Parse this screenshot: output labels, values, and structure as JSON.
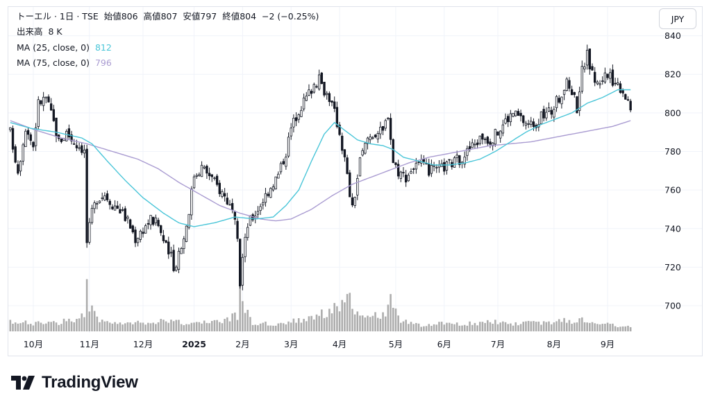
{
  "header": {
    "symbol": "トーエル · 1日 · TSE",
    "open_label": "始値",
    "open": "806",
    "high_label": "高値",
    "high": "807",
    "low_label": "安値",
    "low": "797",
    "close_label": "終値",
    "close": "804",
    "change": "−2 (−0.25%)",
    "volume_label": "出来高",
    "volume": "8 K",
    "ma25_label": "MA (25, close, 0)",
    "ma25_value": "812",
    "ma75_label": "MA (75, close, 0)",
    "ma75_value": "796"
  },
  "currency": "JPY",
  "brand": "TradingView",
  "colors": {
    "up": "#131722",
    "down": "#131722",
    "ma25": "#49c5d8",
    "ma75": "#a99bd1",
    "volume": "#9e9e9e"
  },
  "chart_data": {
    "type": "candlestick",
    "y_ticks": [
      "700",
      "720",
      "740",
      "760",
      "780",
      "800",
      "820",
      "840"
    ],
    "ylim": [
      686,
      842
    ],
    "x_ticks": [
      {
        "label": "10月",
        "index": 9,
        "bold": false
      },
      {
        "label": "11月",
        "index": 31,
        "bold": false
      },
      {
        "label": "12月",
        "index": 52,
        "bold": false
      },
      {
        "label": "2025",
        "index": 72,
        "bold": true
      },
      {
        "label": "2月",
        "index": 91,
        "bold": false
      },
      {
        "label": "3月",
        "index": 110,
        "bold": false
      },
      {
        "label": "4月",
        "index": 129,
        "bold": false
      },
      {
        "label": "5月",
        "index": 151,
        "bold": false
      },
      {
        "label": "6月",
        "index": 170,
        "bold": false
      },
      {
        "label": "7月",
        "index": 191,
        "bold": false
      },
      {
        "label": "8月",
        "index": 213,
        "bold": false
      },
      {
        "label": "9月",
        "index": 234,
        "bold": false
      }
    ],
    "ohlc_anchors": [
      [
        0,
        790
      ],
      [
        3,
        770
      ],
      [
        6,
        793
      ],
      [
        9,
        783
      ],
      [
        11,
        805
      ],
      [
        14,
        808
      ],
      [
        17,
        795
      ],
      [
        19,
        785
      ],
      [
        22,
        790
      ],
      [
        25,
        785
      ],
      [
        28,
        782
      ],
      [
        29,
        780
      ],
      [
        30,
        733
      ],
      [
        32,
        748
      ],
      [
        34,
        756
      ],
      [
        37,
        758
      ],
      [
        40,
        753
      ],
      [
        43,
        750
      ],
      [
        46,
        744
      ],
      [
        49,
        735
      ],
      [
        52,
        740
      ],
      [
        55,
        745
      ],
      [
        58,
        742
      ],
      [
        61,
        730
      ],
      [
        63,
        725
      ],
      [
        64,
        718
      ],
      [
        66,
        728
      ],
      [
        68,
        735
      ],
      [
        70,
        750
      ],
      [
        72,
        768
      ],
      [
        75,
        772
      ],
      [
        78,
        768
      ],
      [
        81,
        762
      ],
      [
        84,
        757
      ],
      [
        86,
        752
      ],
      [
        88,
        742
      ],
      [
        89,
        732
      ],
      [
        90,
        712
      ],
      [
        91,
        725
      ],
      [
        93,
        742
      ],
      [
        96,
        748
      ],
      [
        99,
        755
      ],
      [
        102,
        762
      ],
      [
        105,
        768
      ],
      [
        108,
        780
      ],
      [
        110,
        792
      ],
      [
        113,
        802
      ],
      [
        116,
        808
      ],
      [
        119,
        815
      ],
      [
        121,
        817
      ],
      [
        123,
        812
      ],
      [
        125,
        808
      ],
      [
        127,
        800
      ],
      [
        129,
        790
      ],
      [
        131,
        776
      ],
      [
        133,
        758
      ],
      [
        134,
        750
      ],
      [
        135,
        758
      ],
      [
        137,
        775
      ],
      [
        140,
        787
      ],
      [
        143,
        790
      ],
      [
        146,
        790
      ],
      [
        148,
        800
      ],
      [
        150,
        775
      ],
      [
        152,
        770
      ],
      [
        155,
        767
      ],
      [
        158,
        772
      ],
      [
        161,
        773
      ],
      [
        164,
        770
      ],
      [
        167,
        770
      ],
      [
        170,
        772
      ],
      [
        173,
        774
      ],
      [
        176,
        776
      ],
      [
        179,
        780
      ],
      [
        182,
        784
      ],
      [
        185,
        788
      ],
      [
        188,
        786
      ],
      [
        191,
        790
      ],
      [
        194,
        796
      ],
      [
        197,
        800
      ],
      [
        200,
        797
      ],
      [
        203,
        794
      ],
      [
        206,
        795
      ],
      [
        209,
        799
      ],
      [
        212,
        801
      ],
      [
        215,
        808
      ],
      [
        218,
        815
      ],
      [
        220,
        812
      ],
      [
        222,
        803
      ],
      [
        224,
        822
      ],
      [
        226,
        830
      ],
      [
        228,
        820
      ],
      [
        230,
        815
      ],
      [
        233,
        820
      ],
      [
        235,
        818
      ],
      [
        238,
        815
      ],
      [
        240,
        812
      ],
      [
        242,
        806
      ],
      [
        243,
        804
      ]
    ],
    "ma25_anchors": [
      [
        0,
        795
      ],
      [
        8,
        792
      ],
      [
        18,
        790
      ],
      [
        28,
        787
      ],
      [
        32,
        784
      ],
      [
        38,
        775
      ],
      [
        45,
        765
      ],
      [
        52,
        756
      ],
      [
        60,
        748
      ],
      [
        66,
        743
      ],
      [
        72,
        741
      ],
      [
        80,
        743
      ],
      [
        88,
        746
      ],
      [
        96,
        745
      ],
      [
        103,
        746
      ],
      [
        108,
        752
      ],
      [
        113,
        760
      ],
      [
        118,
        775
      ],
      [
        123,
        789
      ],
      [
        127,
        795
      ],
      [
        131,
        791
      ],
      [
        136,
        786
      ],
      [
        141,
        784
      ],
      [
        146,
        783
      ],
      [
        150,
        781
      ],
      [
        154,
        777
      ],
      [
        160,
        775
      ],
      [
        166,
        773
      ],
      [
        172,
        773
      ],
      [
        178,
        774
      ],
      [
        184,
        776
      ],
      [
        190,
        780
      ],
      [
        196,
        785
      ],
      [
        202,
        790
      ],
      [
        208,
        794
      ],
      [
        214,
        797
      ],
      [
        220,
        800
      ],
      [
        226,
        805
      ],
      [
        232,
        808
      ],
      [
        238,
        812
      ],
      [
        243,
        812
      ]
    ],
    "ma75_anchors": [
      [
        0,
        796
      ],
      [
        10,
        791
      ],
      [
        20,
        787
      ],
      [
        30,
        784
      ],
      [
        40,
        780
      ],
      [
        50,
        776
      ],
      [
        58,
        771
      ],
      [
        66,
        764
      ],
      [
        74,
        758
      ],
      [
        82,
        752
      ],
      [
        90,
        748
      ],
      [
        98,
        745
      ],
      [
        104,
        744
      ],
      [
        110,
        745
      ],
      [
        118,
        750
      ],
      [
        126,
        757
      ],
      [
        134,
        763
      ],
      [
        140,
        766
      ],
      [
        148,
        770
      ],
      [
        156,
        774
      ],
      [
        164,
        777
      ],
      [
        172,
        779
      ],
      [
        180,
        781
      ],
      [
        188,
        783
      ],
      [
        196,
        784
      ],
      [
        204,
        785
      ],
      [
        212,
        787
      ],
      [
        220,
        789
      ],
      [
        228,
        791
      ],
      [
        236,
        793
      ],
      [
        243,
        796
      ]
    ],
    "volume_anchors": [
      [
        0,
        6
      ],
      [
        10,
        5
      ],
      [
        20,
        6
      ],
      [
        29,
        10
      ],
      [
        30,
        34
      ],
      [
        31,
        18
      ],
      [
        35,
        6
      ],
      [
        45,
        5
      ],
      [
        55,
        6
      ],
      [
        60,
        8
      ],
      [
        65,
        6
      ],
      [
        72,
        5
      ],
      [
        80,
        6
      ],
      [
        89,
        10
      ],
      [
        90,
        30
      ],
      [
        92,
        16
      ],
      [
        95,
        5
      ],
      [
        105,
        5
      ],
      [
        113,
        7
      ],
      [
        118,
        10
      ],
      [
        124,
        12
      ],
      [
        126,
        14
      ],
      [
        130,
        18
      ],
      [
        133,
        22
      ],
      [
        134,
        14
      ],
      [
        137,
        8
      ],
      [
        143,
        10
      ],
      [
        147,
        12
      ],
      [
        148,
        22
      ],
      [
        150,
        16
      ],
      [
        152,
        8
      ],
      [
        160,
        4
      ],
      [
        170,
        5
      ],
      [
        180,
        5
      ],
      [
        190,
        6
      ],
      [
        200,
        5
      ],
      [
        210,
        6
      ],
      [
        220,
        7
      ],
      [
        225,
        8
      ],
      [
        230,
        5
      ],
      [
        243,
        3
      ]
    ],
    "volume_max": 45,
    "n_bars": 244
  }
}
